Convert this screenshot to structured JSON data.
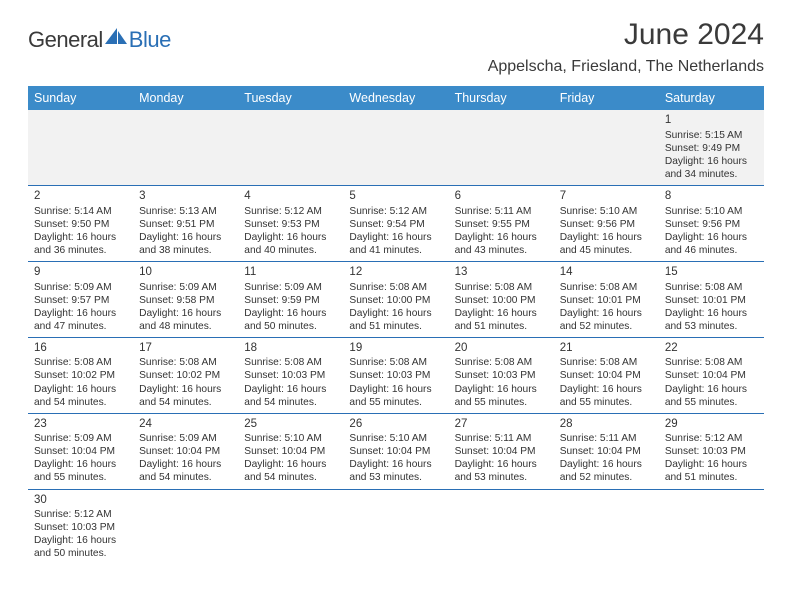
{
  "logo": {
    "part1": "General",
    "part2": "Blue"
  },
  "title": "June 2024",
  "location": "Appelscha, Friesland, The Netherlands",
  "header_bg": "#3b8bc9",
  "border_color": "#2a6fb5",
  "days_of_week": [
    "Sunday",
    "Monday",
    "Tuesday",
    "Wednesday",
    "Thursday",
    "Friday",
    "Saturday"
  ],
  "weeks": [
    [
      null,
      null,
      null,
      null,
      null,
      null,
      {
        "n": "1",
        "sr": "Sunrise: 5:15 AM",
        "ss": "Sunset: 9:49 PM",
        "d1": "Daylight: 16 hours",
        "d2": "and 34 minutes."
      }
    ],
    [
      {
        "n": "2",
        "sr": "Sunrise: 5:14 AM",
        "ss": "Sunset: 9:50 PM",
        "d1": "Daylight: 16 hours",
        "d2": "and 36 minutes."
      },
      {
        "n": "3",
        "sr": "Sunrise: 5:13 AM",
        "ss": "Sunset: 9:51 PM",
        "d1": "Daylight: 16 hours",
        "d2": "and 38 minutes."
      },
      {
        "n": "4",
        "sr": "Sunrise: 5:12 AM",
        "ss": "Sunset: 9:53 PM",
        "d1": "Daylight: 16 hours",
        "d2": "and 40 minutes."
      },
      {
        "n": "5",
        "sr": "Sunrise: 5:12 AM",
        "ss": "Sunset: 9:54 PM",
        "d1": "Daylight: 16 hours",
        "d2": "and 41 minutes."
      },
      {
        "n": "6",
        "sr": "Sunrise: 5:11 AM",
        "ss": "Sunset: 9:55 PM",
        "d1": "Daylight: 16 hours",
        "d2": "and 43 minutes."
      },
      {
        "n": "7",
        "sr": "Sunrise: 5:10 AM",
        "ss": "Sunset: 9:56 PM",
        "d1": "Daylight: 16 hours",
        "d2": "and 45 minutes."
      },
      {
        "n": "8",
        "sr": "Sunrise: 5:10 AM",
        "ss": "Sunset: 9:56 PM",
        "d1": "Daylight: 16 hours",
        "d2": "and 46 minutes."
      }
    ],
    [
      {
        "n": "9",
        "sr": "Sunrise: 5:09 AM",
        "ss": "Sunset: 9:57 PM",
        "d1": "Daylight: 16 hours",
        "d2": "and 47 minutes."
      },
      {
        "n": "10",
        "sr": "Sunrise: 5:09 AM",
        "ss": "Sunset: 9:58 PM",
        "d1": "Daylight: 16 hours",
        "d2": "and 48 minutes."
      },
      {
        "n": "11",
        "sr": "Sunrise: 5:09 AM",
        "ss": "Sunset: 9:59 PM",
        "d1": "Daylight: 16 hours",
        "d2": "and 50 minutes."
      },
      {
        "n": "12",
        "sr": "Sunrise: 5:08 AM",
        "ss": "Sunset: 10:00 PM",
        "d1": "Daylight: 16 hours",
        "d2": "and 51 minutes."
      },
      {
        "n": "13",
        "sr": "Sunrise: 5:08 AM",
        "ss": "Sunset: 10:00 PM",
        "d1": "Daylight: 16 hours",
        "d2": "and 51 minutes."
      },
      {
        "n": "14",
        "sr": "Sunrise: 5:08 AM",
        "ss": "Sunset: 10:01 PM",
        "d1": "Daylight: 16 hours",
        "d2": "and 52 minutes."
      },
      {
        "n": "15",
        "sr": "Sunrise: 5:08 AM",
        "ss": "Sunset: 10:01 PM",
        "d1": "Daylight: 16 hours",
        "d2": "and 53 minutes."
      }
    ],
    [
      {
        "n": "16",
        "sr": "Sunrise: 5:08 AM",
        "ss": "Sunset: 10:02 PM",
        "d1": "Daylight: 16 hours",
        "d2": "and 54 minutes."
      },
      {
        "n": "17",
        "sr": "Sunrise: 5:08 AM",
        "ss": "Sunset: 10:02 PM",
        "d1": "Daylight: 16 hours",
        "d2": "and 54 minutes."
      },
      {
        "n": "18",
        "sr": "Sunrise: 5:08 AM",
        "ss": "Sunset: 10:03 PM",
        "d1": "Daylight: 16 hours",
        "d2": "and 54 minutes."
      },
      {
        "n": "19",
        "sr": "Sunrise: 5:08 AM",
        "ss": "Sunset: 10:03 PM",
        "d1": "Daylight: 16 hours",
        "d2": "and 55 minutes."
      },
      {
        "n": "20",
        "sr": "Sunrise: 5:08 AM",
        "ss": "Sunset: 10:03 PM",
        "d1": "Daylight: 16 hours",
        "d2": "and 55 minutes."
      },
      {
        "n": "21",
        "sr": "Sunrise: 5:08 AM",
        "ss": "Sunset: 10:04 PM",
        "d1": "Daylight: 16 hours",
        "d2": "and 55 minutes."
      },
      {
        "n": "22",
        "sr": "Sunrise: 5:08 AM",
        "ss": "Sunset: 10:04 PM",
        "d1": "Daylight: 16 hours",
        "d2": "and 55 minutes."
      }
    ],
    [
      {
        "n": "23",
        "sr": "Sunrise: 5:09 AM",
        "ss": "Sunset: 10:04 PM",
        "d1": "Daylight: 16 hours",
        "d2": "and 55 minutes."
      },
      {
        "n": "24",
        "sr": "Sunrise: 5:09 AM",
        "ss": "Sunset: 10:04 PM",
        "d1": "Daylight: 16 hours",
        "d2": "and 54 minutes."
      },
      {
        "n": "25",
        "sr": "Sunrise: 5:10 AM",
        "ss": "Sunset: 10:04 PM",
        "d1": "Daylight: 16 hours",
        "d2": "and 54 minutes."
      },
      {
        "n": "26",
        "sr": "Sunrise: 5:10 AM",
        "ss": "Sunset: 10:04 PM",
        "d1": "Daylight: 16 hours",
        "d2": "and 53 minutes."
      },
      {
        "n": "27",
        "sr": "Sunrise: 5:11 AM",
        "ss": "Sunset: 10:04 PM",
        "d1": "Daylight: 16 hours",
        "d2": "and 53 minutes."
      },
      {
        "n": "28",
        "sr": "Sunrise: 5:11 AM",
        "ss": "Sunset: 10:04 PM",
        "d1": "Daylight: 16 hours",
        "d2": "and 52 minutes."
      },
      {
        "n": "29",
        "sr": "Sunrise: 5:12 AM",
        "ss": "Sunset: 10:03 PM",
        "d1": "Daylight: 16 hours",
        "d2": "and 51 minutes."
      }
    ],
    [
      {
        "n": "30",
        "sr": "Sunrise: 5:12 AM",
        "ss": "Sunset: 10:03 PM",
        "d1": "Daylight: 16 hours",
        "d2": "and 50 minutes."
      },
      null,
      null,
      null,
      null,
      null,
      null
    ]
  ]
}
